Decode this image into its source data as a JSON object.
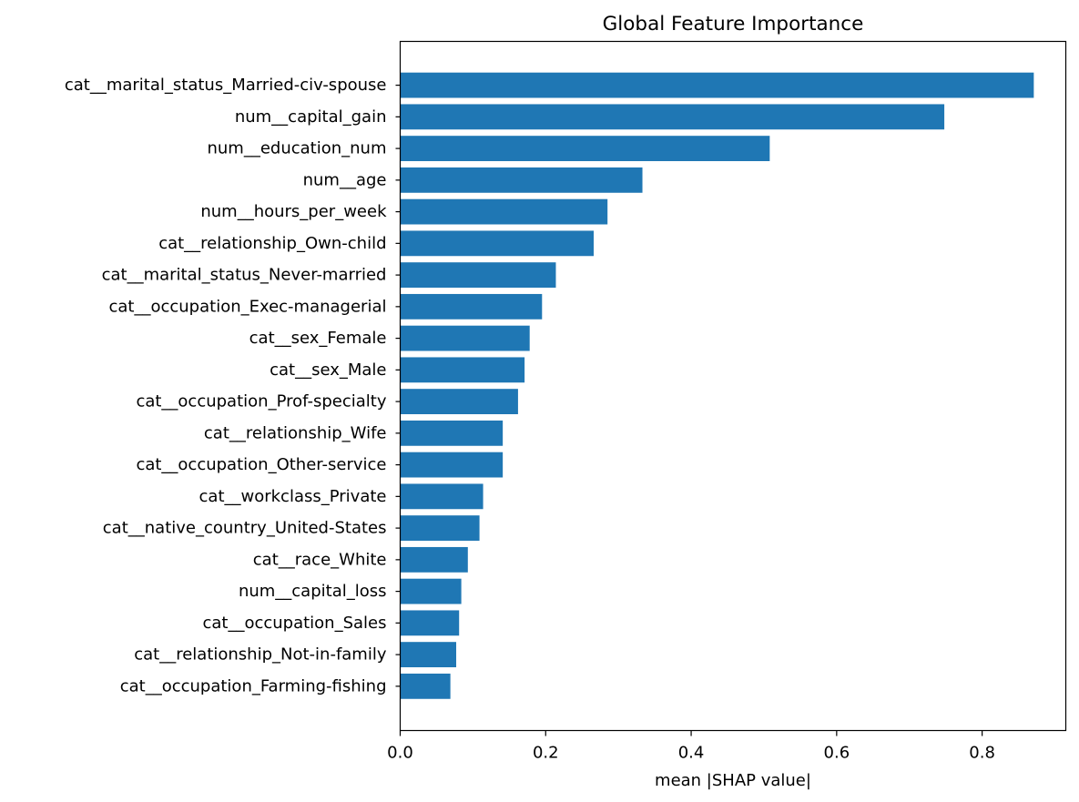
{
  "chart_data": {
    "type": "bar",
    "orientation": "horizontal",
    "title": "Global Feature Importance",
    "xlabel": "mean |SHAP value|",
    "ylabel": "",
    "xlim": [
      0,
      0.915
    ],
    "xticks": [
      0.0,
      0.2,
      0.4,
      0.6,
      0.8
    ],
    "xtick_labels": [
      "0.0",
      "0.2",
      "0.4",
      "0.6",
      "0.8"
    ],
    "grid": false,
    "bar_color": "#1f77b4",
    "categories": [
      "cat__marital_status_Married-civ-spouse",
      "num__capital_gain",
      "num__education_num",
      "num__age",
      "num__hours_per_week",
      "cat__relationship_Own-child",
      "cat__marital_status_Never-married",
      "cat__occupation_Exec-managerial",
      "cat__sex_Female",
      "cat__sex_Male",
      "cat__occupation_Prof-specialty",
      "cat__relationship_Wife",
      "cat__occupation_Other-service",
      "cat__workclass_Private",
      "cat__native_country_United-States",
      "cat__race_White",
      "num__capital_loss",
      "cat__occupation_Sales",
      "cat__relationship_Not-in-family",
      "cat__occupation_Farming-fishing"
    ],
    "values": [
      0.871,
      0.748,
      0.508,
      0.333,
      0.285,
      0.266,
      0.214,
      0.195,
      0.178,
      0.171,
      0.162,
      0.141,
      0.141,
      0.114,
      0.109,
      0.093,
      0.084,
      0.081,
      0.077,
      0.069
    ]
  }
}
